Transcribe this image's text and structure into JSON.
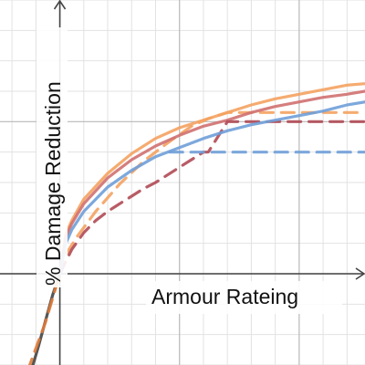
{
  "chart_data": {
    "type": "line",
    "xlabel": "Armour Rateing",
    "ylabel": "% Damage Reduction",
    "xlim": [
      -2.5,
      12.75
    ],
    "ylim": [
      -3.0,
      9.0
    ],
    "grid": true,
    "grid_step": 1,
    "major_grid_step": 5,
    "axis_color": "#444444",
    "series": [
      {
        "color": "#444444",
        "style": "solid",
        "points": [
          [
            -1.2,
            -3.2
          ],
          [
            -0.9,
            -2.4
          ],
          [
            -0.6,
            -1.55
          ],
          [
            -0.3,
            -0.7
          ],
          [
            0,
            0
          ]
        ]
      },
      {
        "color": "#e07b39",
        "style": "dashed",
        "points": [
          [
            -1.35,
            -3.2
          ],
          [
            -1.0,
            -2.45
          ],
          [
            -0.6,
            -1.6
          ],
          [
            -0.3,
            -0.8
          ],
          [
            0,
            0
          ]
        ]
      },
      {
        "color": "#f4a261",
        "style": "solid",
        "points": [
          [
            0,
            0
          ],
          [
            0.25,
            1.3
          ],
          [
            0.5,
            1.75
          ],
          [
            1,
            2.45
          ],
          [
            2,
            3.3
          ],
          [
            3,
            3.95
          ],
          [
            4,
            4.45
          ],
          [
            5,
            4.8
          ],
          [
            6,
            5.05
          ],
          [
            7,
            5.3
          ],
          [
            8,
            5.55
          ],
          [
            9,
            5.75
          ],
          [
            10,
            5.9
          ],
          [
            11,
            6.05
          ],
          [
            12,
            6.2
          ],
          [
            12.75,
            6.25
          ]
        ]
      },
      {
        "color": "#f4a261",
        "style": "dashed",
        "points": [
          [
            0,
            0
          ],
          [
            0.3,
            0.7
          ],
          [
            0.75,
            1.25
          ],
          [
            1.5,
            2.05
          ],
          [
            2.5,
            2.95
          ],
          [
            3.5,
            3.7
          ],
          [
            4.5,
            4.3
          ],
          [
            5.5,
            4.85
          ],
          [
            6.2,
            5.1
          ],
          [
            7,
            5.3
          ],
          [
            8,
            5.3
          ],
          [
            9,
            5.3
          ],
          [
            10,
            5.3
          ],
          [
            11,
            5.3
          ],
          [
            12,
            5.3
          ],
          [
            12.75,
            5.3
          ]
        ]
      },
      {
        "color": "#d07070",
        "style": "solid",
        "points": [
          [
            0,
            0
          ],
          [
            0.25,
            1.2
          ],
          [
            0.5,
            1.65
          ],
          [
            1,
            2.3
          ],
          [
            2,
            3.15
          ],
          [
            3,
            3.75
          ],
          [
            4,
            4.2
          ],
          [
            5,
            4.55
          ],
          [
            6,
            4.85
          ],
          [
            7,
            5.05
          ],
          [
            8,
            5.3
          ],
          [
            9,
            5.5
          ],
          [
            10,
            5.65
          ],
          [
            11,
            5.8
          ],
          [
            12,
            5.9
          ],
          [
            12.75,
            6.0
          ]
        ]
      },
      {
        "color": "#b04a55",
        "style": "dashed",
        "points": [
          [
            0,
            0
          ],
          [
            0.5,
            0.8
          ],
          [
            1,
            1.35
          ],
          [
            1.5,
            1.75
          ],
          [
            2,
            2.05
          ],
          [
            2.5,
            2.3
          ],
          [
            3,
            2.55
          ],
          [
            3.5,
            2.8
          ],
          [
            4,
            3.0
          ],
          [
            4.5,
            3.25
          ],
          [
            5,
            3.5
          ],
          [
            5.5,
            3.75
          ],
          [
            6,
            4.0
          ],
          [
            6.2,
            4.0
          ],
          [
            7,
            5.0
          ],
          [
            8,
            5.0
          ],
          [
            9,
            5.0
          ],
          [
            10,
            5.0
          ],
          [
            11,
            5.0
          ],
          [
            12,
            5.0
          ],
          [
            12.75,
            5.0
          ]
        ]
      },
      {
        "color": "#6f9fd8",
        "style": "solid",
        "points": [
          [
            0,
            0
          ],
          [
            0.25,
            1.0
          ],
          [
            0.5,
            1.45
          ],
          [
            1,
            2.05
          ],
          [
            2,
            2.85
          ],
          [
            3,
            3.4
          ],
          [
            4,
            3.85
          ],
          [
            5,
            4.15
          ],
          [
            6,
            4.45
          ],
          [
            7,
            4.7
          ],
          [
            8,
            4.9
          ],
          [
            9,
            5.05
          ],
          [
            10,
            5.2
          ],
          [
            11,
            5.35
          ],
          [
            12,
            5.55
          ],
          [
            12.75,
            5.65
          ]
        ]
      },
      {
        "color": "#6f9fd8",
        "style": "dashed",
        "points": [
          [
            4.6,
            4.0
          ],
          [
            5,
            4.0
          ],
          [
            6,
            4.0
          ],
          [
            7,
            4.0
          ],
          [
            8,
            4.0
          ],
          [
            9,
            4.0
          ],
          [
            10,
            4.0
          ],
          [
            11,
            4.0
          ],
          [
            12,
            4.0
          ],
          [
            12.75,
            4.0
          ]
        ]
      }
    ]
  }
}
